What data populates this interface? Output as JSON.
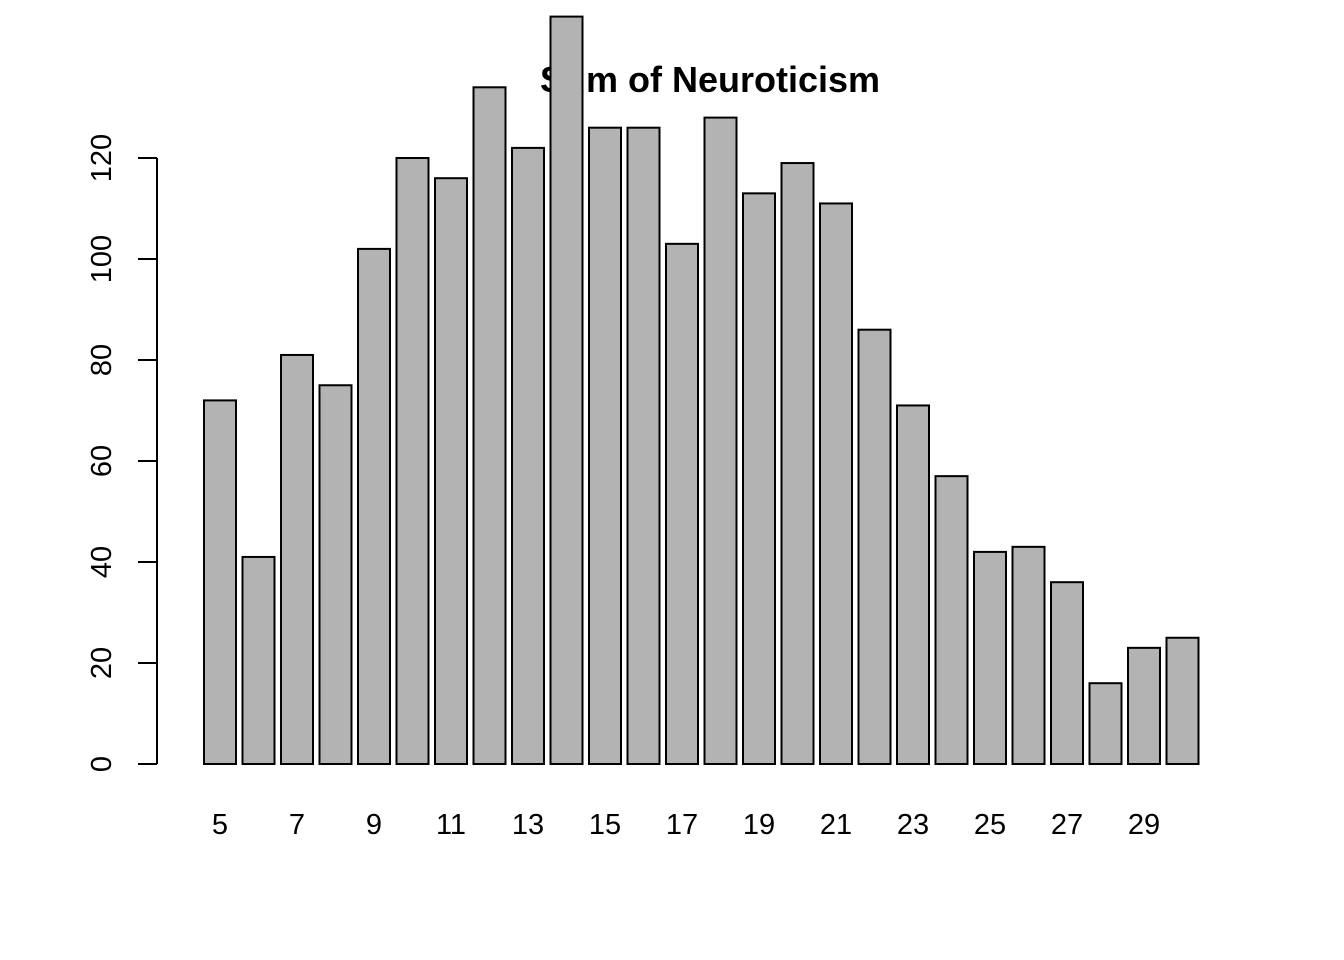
{
  "chart_data": {
    "type": "bar",
    "title": "Sum of Neuroticism",
    "xlabel": "",
    "ylabel": "",
    "categories": [
      "5",
      "6",
      "7",
      "8",
      "9",
      "10",
      "11",
      "12",
      "13",
      "14",
      "15",
      "16",
      "17",
      "18",
      "19",
      "20",
      "21",
      "22",
      "23",
      "24",
      "25",
      "26",
      "27",
      "28",
      "29",
      "30"
    ],
    "values": [
      72,
      41,
      81,
      75,
      102,
      120,
      116,
      134,
      122,
      148,
      126,
      126,
      103,
      128,
      113,
      119,
      111,
      86,
      71,
      57,
      42,
      43,
      36,
      16,
      23,
      25
    ],
    "x_tick_labels_shown": [
      "5",
      "7",
      "9",
      "11",
      "13",
      "15",
      "17",
      "19",
      "21",
      "23",
      "25",
      "27",
      "29"
    ],
    "y_ticks": [
      0,
      20,
      40,
      60,
      80,
      100,
      120
    ],
    "ylim": [
      0,
      148
    ],
    "grid": false,
    "bar_color": "#b3b3b3",
    "border_color": "#000000"
  }
}
